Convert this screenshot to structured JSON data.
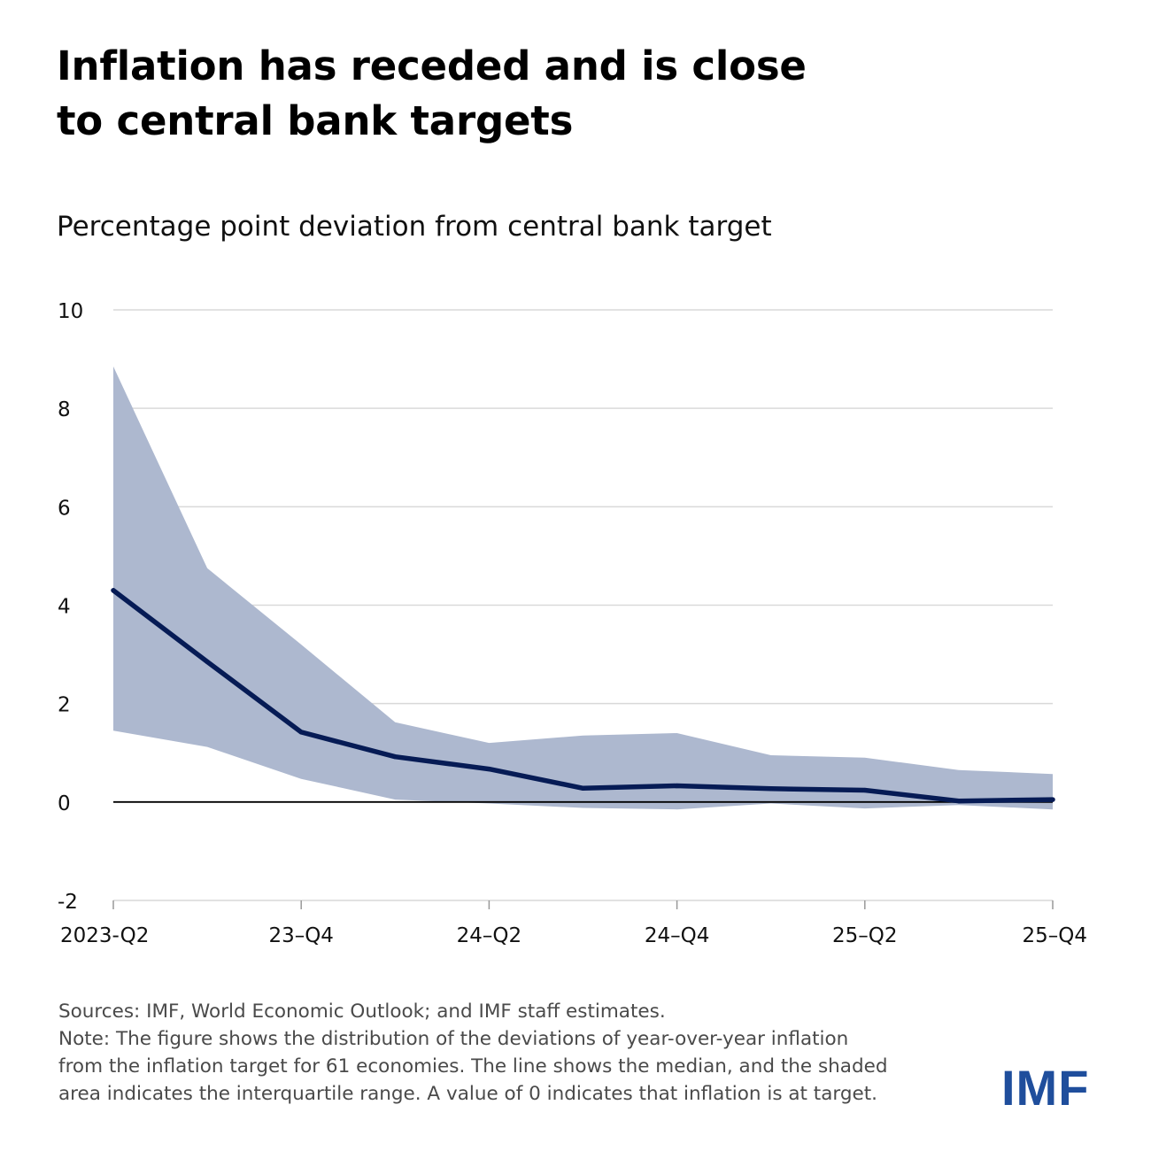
{
  "title_lines": [
    "Inflation has receded and is close",
    "to central bank targets"
  ],
  "subtitle": "Percentage point deviation from central bank target",
  "colors": {
    "median_line": "#061b55",
    "band_fill": "#adb8cf",
    "grid": "#d9d9d9",
    "zero_line": "#000000",
    "logo": "#1f4e9c"
  },
  "chart_data": {
    "type": "area",
    "title": "Percentage point deviation from central bank target",
    "xlabel": "",
    "ylabel": "",
    "ylim": [
      -2,
      10
    ],
    "yticks": [
      -2,
      0,
      2,
      4,
      6,
      8,
      10
    ],
    "ytick_labels": [
      "-2",
      "0",
      "2",
      "4",
      "6",
      "8",
      "10"
    ],
    "x": [
      "2023-Q2",
      "23-Q3",
      "23-Q4",
      "24-Q1",
      "24-Q2",
      "24-Q3",
      "24-Q4",
      "25-Q1",
      "25-Q2",
      "25-Q3",
      "25-Q4"
    ],
    "xtick_labels": [
      "2023-Q2",
      "23–Q4",
      "24–Q2",
      "24–Q4",
      "25–Q2",
      "25–Q4"
    ],
    "xtick_indices": [
      0,
      2,
      4,
      6,
      8,
      10
    ],
    "grid": true,
    "series": [
      {
        "name": "Median",
        "type": "line",
        "values": [
          4.3,
          2.85,
          1.42,
          0.92,
          0.67,
          0.28,
          0.33,
          0.27,
          0.24,
          0.02,
          0.05
        ]
      },
      {
        "name": "Interquartile range (upper)",
        "type": "band-upper",
        "values": [
          8.85,
          4.75,
          3.2,
          1.62,
          1.2,
          1.35,
          1.4,
          0.95,
          0.9,
          0.65,
          0.57
        ]
      },
      {
        "name": "Interquartile range (lower)",
        "type": "band-lower",
        "values": [
          1.45,
          1.12,
          0.47,
          0.05,
          -0.03,
          -0.12,
          -0.15,
          -0.03,
          -0.13,
          -0.06,
          -0.15
        ]
      }
    ]
  },
  "notes": {
    "sources": "Sources: IMF, World Economic Outlook; and IMF staff estimates.",
    "note_lines": [
      "Note: The figure shows the distribution of the deviations of year-over-year inflation",
      "from the inflation target for 61 economies. The line shows the median, and the shaded",
      "area indicates the interquartile range. A value of 0 indicates that inflation is at target."
    ]
  },
  "logo_text": "IMF"
}
